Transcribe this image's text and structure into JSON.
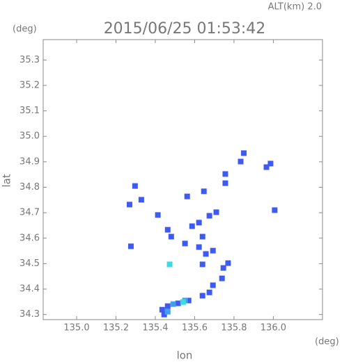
{
  "chart_data": {
    "type": "scatter",
    "altitude_label": "ALT(km) 2.0",
    "title": "2015/06/25 01:53:42",
    "y_unit": "(deg)",
    "x_unit": "(deg)",
    "ylabel": "lat",
    "xlabel": "lon",
    "xlim": [
      134.83,
      136.25
    ],
    "ylim": [
      34.28,
      35.38
    ],
    "xticks": [
      {
        "value": 135,
        "label": "135.0"
      },
      {
        "value": 135.2,
        "label": "135.2"
      },
      {
        "value": 135.4,
        "label": "135.4"
      },
      {
        "value": 135.6,
        "label": "135.6"
      },
      {
        "value": 135.8,
        "label": "135.8"
      },
      {
        "value": 136,
        "label": "136.0"
      }
    ],
    "yticks": [
      34.3,
      34.4,
      34.5,
      34.6,
      34.7,
      34.8,
      34.9,
      {
        "value": 35,
        "label": "35.0"
      },
      35.1,
      35.2,
      35.3
    ],
    "series": [
      {
        "color": "#3f5af0",
        "x": [
          135.834,
          135.85,
          135.965,
          135.986,
          135.297,
          135.269,
          135.329,
          135.413,
          135.562,
          135.647,
          135.756,
          135.756,
          136.007,
          135.276,
          135.622,
          135.675,
          135.71,
          135.587,
          135.64,
          135.622,
          135.657,
          135.64,
          135.693,
          135.463,
          135.481,
          135.551,
          135.746,
          135.739,
          135.77,
          135.693,
          135.675,
          135.64,
          135.569,
          135.516,
          135.463,
          135.435,
          135.445
        ],
        "values": [
          34.901,
          34.934,
          34.879,
          34.893,
          34.805,
          34.732,
          34.751,
          34.691,
          34.764,
          34.784,
          34.852,
          34.816,
          34.71,
          34.568,
          34.661,
          34.688,
          34.702,
          34.647,
          34.606,
          34.565,
          34.538,
          34.497,
          34.551,
          34.633,
          34.606,
          34.579,
          34.483,
          34.442,
          34.502,
          34.415,
          34.387,
          34.374,
          34.355,
          34.344,
          34.333,
          34.319,
          34.3
        ]
      },
      {
        "color": "#3fa0f0",
        "x": [
          135.491,
          135.551,
          135.463
        ],
        "values": [
          34.341,
          34.355,
          34.311
        ]
      },
      {
        "color": "#3fd8e0",
        "x": [
          135.473,
          135.541
        ],
        "values": [
          34.497,
          34.349
        ]
      }
    ]
  }
}
